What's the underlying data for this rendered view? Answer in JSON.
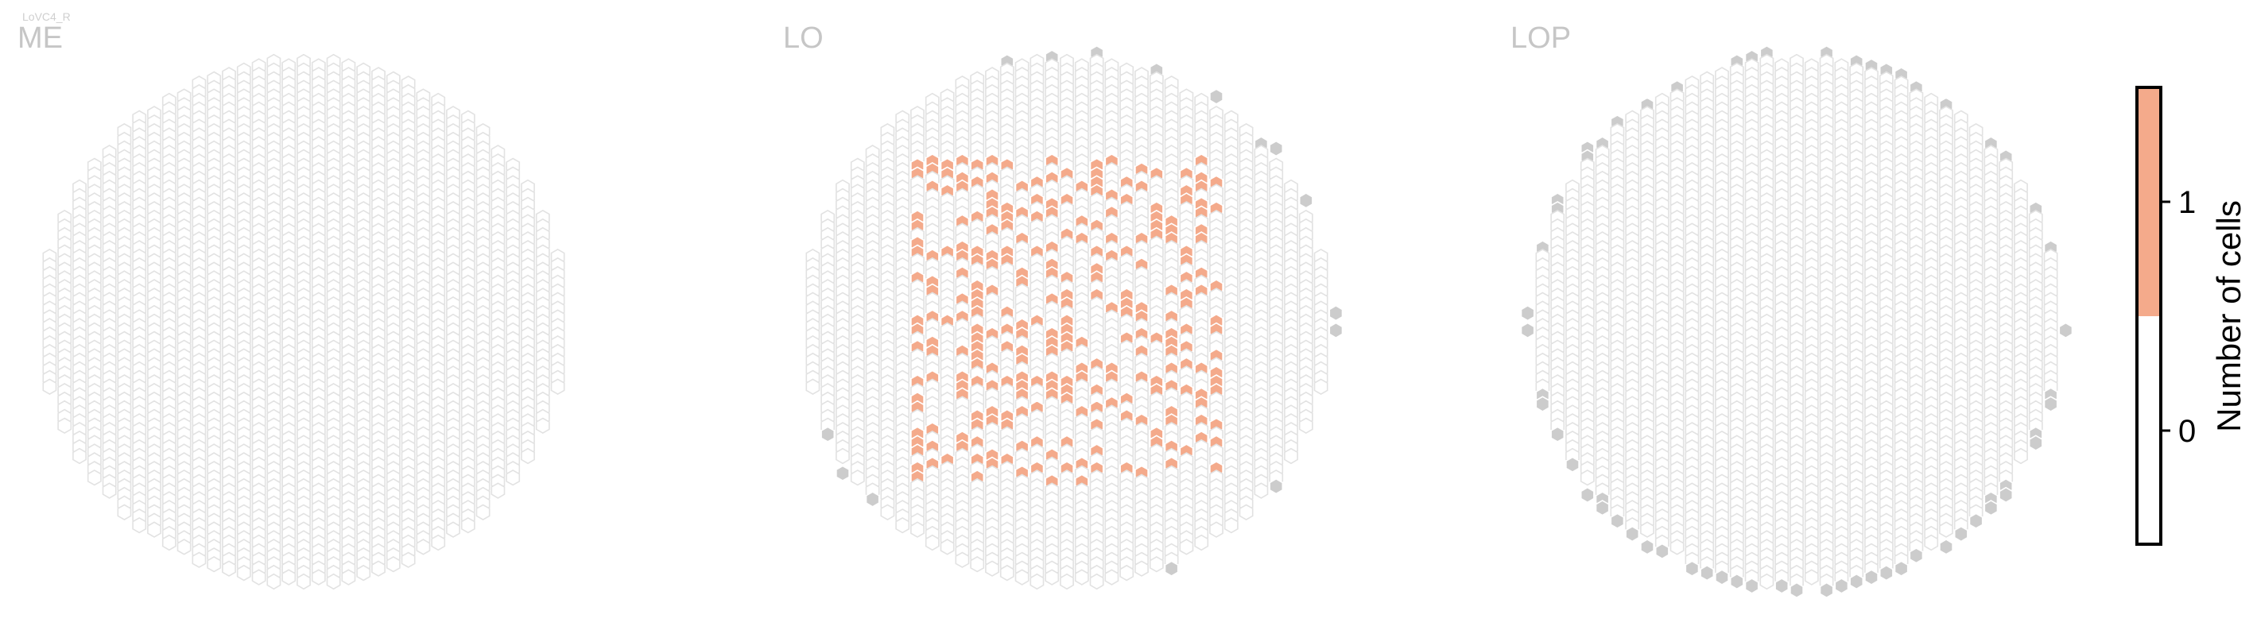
{
  "title": "LoVC4_R",
  "colors": {
    "hex_empty_stroke": "#e2e2e2",
    "hex_empty_fill": "#ffffff",
    "hex_outside": "#cccccc",
    "hex_one": "#f4aa8b",
    "panel_label": "#c6c6c6",
    "title": "#cfcfcf",
    "axis": "#000000"
  },
  "chart_data": {
    "type": "heatmap",
    "panels": [
      {
        "label": "ME",
        "cells_with_value_1": "none",
        "outside_markers": "none"
      },
      {
        "label": "LO",
        "cells_with_value_1": "scattered cluster across the central region (roughly 150 columns)",
        "outside_markers": "ring of grey columns along upper-left, left, lower-left, bottom and right edges"
      },
      {
        "label": "LOP",
        "cells_with_value_1": "none",
        "outside_markers": "dense ring of grey columns along the full circumference"
      }
    ],
    "colorbar": {
      "label": "Number of cells",
      "ticks": [
        {
          "value": 0,
          "label": "0"
        },
        {
          "value": 1,
          "label": "1"
        }
      ],
      "range": [
        -0.5,
        1.5
      ],
      "segments": [
        {
          "from": -0.5,
          "to": 0.5,
          "color": "#ffffff"
        },
        {
          "from": 0.5,
          "to": 1.5,
          "color": "#f4aa8b"
        }
      ]
    }
  }
}
